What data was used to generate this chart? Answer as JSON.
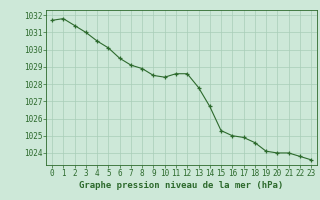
{
  "hours": [
    0,
    1,
    2,
    3,
    4,
    5,
    6,
    7,
    8,
    9,
    10,
    11,
    12,
    13,
    14,
    15,
    16,
    17,
    18,
    19,
    20,
    21,
    22,
    23
  ],
  "pressure": [
    1031.7,
    1031.8,
    1031.4,
    1031.0,
    1030.5,
    1030.1,
    1029.5,
    1029.1,
    1028.9,
    1028.5,
    1028.4,
    1028.6,
    1028.6,
    1027.8,
    1026.7,
    1025.3,
    1025.0,
    1024.9,
    1024.6,
    1024.1,
    1024.0,
    1024.0,
    1023.8,
    1023.6
  ],
  "line_color": "#2d6a2d",
  "marker_color": "#2d6a2d",
  "bg_color": "#cde8d8",
  "grid_color": "#a8cdb8",
  "title": "Graphe pression niveau de la mer (hPa)",
  "ylim": [
    1023.3,
    1032.3
  ],
  "yticks": [
    1024,
    1025,
    1026,
    1027,
    1028,
    1029,
    1030,
    1031,
    1032
  ],
  "xlim": [
    -0.5,
    23.5
  ],
  "xticks": [
    0,
    1,
    2,
    3,
    4,
    5,
    6,
    7,
    8,
    9,
    10,
    11,
    12,
    13,
    14,
    15,
    16,
    17,
    18,
    19,
    20,
    21,
    22,
    23
  ],
  "title_fontsize": 6.5,
  "tick_fontsize": 5.5
}
